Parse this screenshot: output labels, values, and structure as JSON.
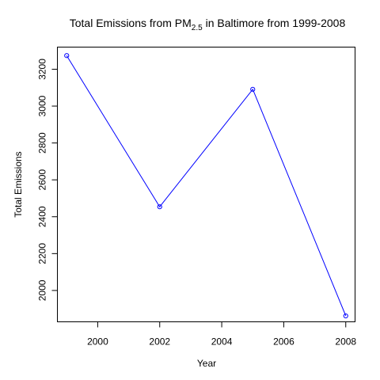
{
  "chart_data": {
    "type": "line",
    "title": {
      "prefix": "Total Emissions from PM",
      "subscript": "2.5",
      "suffix": " in Baltimore from 1999-2008"
    },
    "xlabel": "Year",
    "ylabel": "Total Emissions",
    "xlim": [
      1998.7,
      2008.3
    ],
    "ylim": [
      1830,
      3320
    ],
    "x_ticks": [
      2000,
      2002,
      2004,
      2006,
      2008
    ],
    "x_tick_labels": [
      "2000",
      "2002",
      "2004",
      "2006",
      "2008"
    ],
    "y_ticks": [
      2000,
      2200,
      2400,
      2600,
      2800,
      3000,
      3200
    ],
    "y_tick_labels": [
      "2000",
      "2200",
      "2400",
      "2600",
      "2800",
      "3000",
      "3200"
    ],
    "grid": false,
    "series": [
      {
        "x": [
          1999,
          2002,
          2005,
          2008
        ],
        "y": [
          3274,
          2454,
          3091,
          1862
        ],
        "color": "#0000ff",
        "marker": "open-circle"
      }
    ]
  }
}
